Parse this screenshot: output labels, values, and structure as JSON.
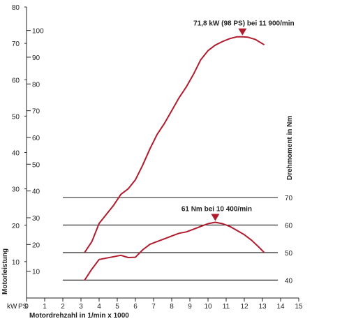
{
  "chart_data": {
    "type": "line",
    "xlabel": "Motordrehzahl in 1/min x 1000",
    "ylabel_left": "Motorleistung",
    "ylabel_right": "Drehmoment in Nm",
    "left_unit_kw": "kW",
    "left_unit_ps": "PS",
    "xlim": [
      0,
      15
    ],
    "x_ticks": [
      "0",
      "1",
      "2",
      "3",
      "4",
      "5",
      "6",
      "7",
      "8",
      "9",
      "10",
      "11",
      "12",
      "13",
      "14",
      "15"
    ],
    "kw_lim": [
      0,
      80
    ],
    "kw_ticks": [
      "10",
      "20",
      "30",
      "40",
      "50",
      "60",
      "70",
      "80"
    ],
    "ps_ticks": [
      "10",
      "20",
      "30",
      "40",
      "50",
      "60",
      "70",
      "80",
      "90",
      "100"
    ],
    "nm_lim": [
      33.5,
      70
    ],
    "nm_ticks": [
      "40",
      "50",
      "60",
      "70"
    ],
    "grid": "horizontal torque gridlines (40, 50, 60, 70 Nm)",
    "line_color": "#b01c2e",
    "series": [
      {
        "name": "Motorleistung",
        "axis": "kW",
        "x": [
          3.2,
          3.6,
          4.0,
          4.4,
          4.8,
          5.2,
          5.6,
          6.0,
          6.4,
          6.8,
          7.2,
          7.6,
          8.0,
          8.4,
          8.8,
          9.2,
          9.6,
          10.0,
          10.4,
          10.8,
          11.2,
          11.6,
          11.9,
          12.2,
          12.6,
          13.1
        ],
        "values": [
          12.5,
          15.5,
          20.5,
          23.0,
          25.5,
          28.5,
          30.0,
          32.5,
          36.5,
          41.0,
          45.0,
          48.0,
          51.5,
          55.0,
          58.0,
          61.5,
          65.5,
          68.0,
          69.5,
          70.5,
          71.3,
          71.8,
          71.8,
          71.7,
          71.1,
          69.6
        ]
      },
      {
        "name": "Drehmoment",
        "axis": "Nm",
        "x": [
          3.2,
          3.6,
          4.0,
          4.4,
          4.8,
          5.2,
          5.6,
          6.0,
          6.4,
          6.8,
          7.2,
          7.6,
          8.0,
          8.4,
          8.8,
          9.2,
          9.6,
          10.0,
          10.4,
          10.8,
          11.2,
          11.6,
          12.0,
          12.4,
          12.8,
          13.1
        ],
        "values": [
          40.0,
          44.0,
          47.5,
          48.0,
          48.5,
          49.0,
          48.2,
          48.3,
          51.0,
          53.0,
          54.0,
          55.0,
          56.0,
          57.0,
          57.5,
          58.5,
          59.5,
          60.5,
          61.0,
          60.5,
          59.5,
          58.0,
          56.5,
          54.5,
          52.0,
          50.0
        ]
      }
    ],
    "annotations": [
      {
        "text": "71,8 kW (98 PS) bei 11 900/min",
        "x": 11.9,
        "value": 71.8,
        "axis": "kW"
      },
      {
        "text": "61 Nm bei 10 400/min",
        "x": 10.4,
        "value": 61.0,
        "axis": "Nm"
      }
    ]
  }
}
